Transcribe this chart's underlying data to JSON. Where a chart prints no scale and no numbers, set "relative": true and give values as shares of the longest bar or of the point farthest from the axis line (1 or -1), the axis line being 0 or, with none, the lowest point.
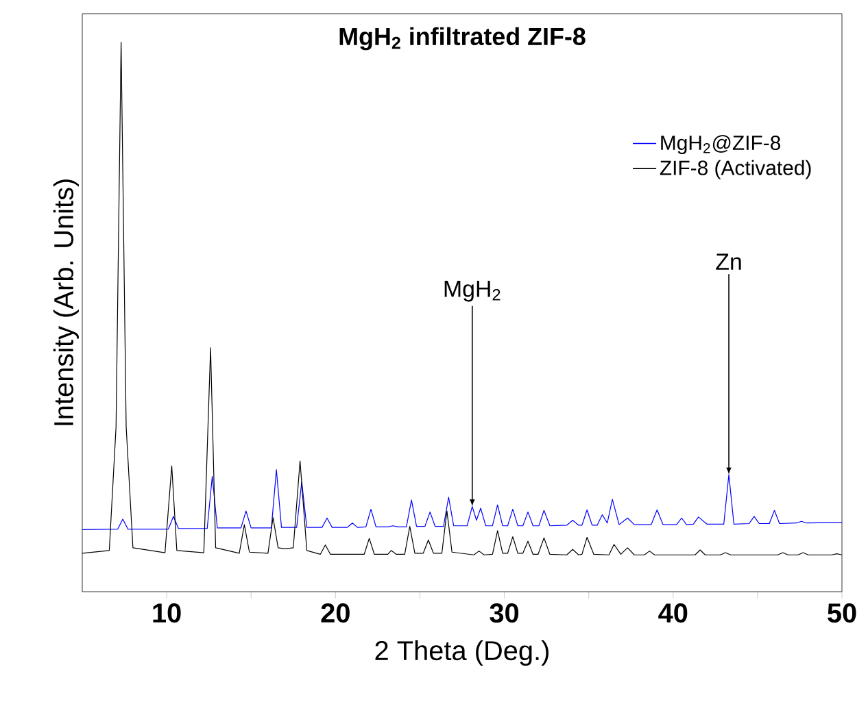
{
  "chart_data": {
    "type": "line",
    "title": "MgH$_{2}$ infiltrated ZIF-8",
    "xlabel": "2 Theta (Deg.)",
    "ylabel": "Intensity (Arb. Units)",
    "relative": true,
    "xlim": [
      5,
      50
    ],
    "xticks": [
      10,
      {
        "value": 15,
        "label": null
      },
      20,
      {
        "value": 25,
        "label": null
      },
      30,
      {
        "value": 35,
        "label": null
      },
      40,
      {
        "value": 45,
        "label": null
      },
      50
    ],
    "legend": "top right",
    "grid": false,
    "marker": "none",
    "line_style": "solid",
    "annotations": [
      {
        "text": "MgH$_{2}$",
        "x": 28.1,
        "y": 0.155
      },
      {
        "text": "Zn",
        "x": 43.3,
        "y": 0.213
      }
    ],
    "series": [
      {
        "name": "MgH$_{2}$@ZIF-8",
        "color": "#0000ff",
        "x": [
          5,
          7.1,
          7.4,
          7.7,
          10.1,
          10.4,
          10.7,
          12.4,
          12.7,
          13.0,
          14.4,
          14.7,
          15.0,
          16.2,
          16.5,
          16.8,
          17.7,
          18.0,
          18.3,
          19.2,
          19.5,
          19.8,
          20.7,
          21.0,
          21.3,
          21.8,
          22.1,
          22.4,
          23.1,
          23.4,
          23.7,
          24.2,
          24.5,
          24.8,
          25.3,
          25.6,
          25.9,
          26.4,
          26.7,
          27.0,
          27.8,
          28.1,
          28.35,
          28.6,
          28.9,
          29.3,
          29.6,
          29.9,
          30.2,
          30.5,
          30.8,
          31.1,
          31.4,
          31.7,
          32.05,
          32.35,
          32.7,
          33.7,
          34.05,
          34.4,
          34.6,
          34.9,
          35.2,
          35.5,
          35.8,
          36.1,
          36.4,
          36.8,
          37.3,
          37.7,
          38.7,
          39.05,
          39.4,
          40.2,
          40.5,
          40.8,
          41.2,
          41.5,
          42.0,
          43.0,
          43.3,
          43.6,
          44.5,
          44.8,
          45.1,
          45.7,
          46.0,
          46.3,
          47.3,
          47.6,
          47.9,
          50
        ],
        "values": [
          0.113,
          0.114,
          0.132,
          0.114,
          0.114,
          0.137,
          0.115,
          0.115,
          0.21,
          0.116,
          0.116,
          0.147,
          0.116,
          0.116,
          0.222,
          0.117,
          0.117,
          0.2,
          0.117,
          0.117,
          0.134,
          0.117,
          0.117,
          0.125,
          0.117,
          0.118,
          0.15,
          0.118,
          0.118,
          0.12,
          0.118,
          0.118,
          0.167,
          0.119,
          0.119,
          0.145,
          0.119,
          0.119,
          0.172,
          0.12,
          0.12,
          0.155,
          0.13,
          0.152,
          0.12,
          0.12,
          0.158,
          0.12,
          0.12,
          0.15,
          0.12,
          0.12,
          0.145,
          0.12,
          0.12,
          0.148,
          0.12,
          0.121,
          0.13,
          0.121,
          0.121,
          0.149,
          0.121,
          0.121,
          0.14,
          0.125,
          0.168,
          0.122,
          0.134,
          0.122,
          0.122,
          0.149,
          0.122,
          0.122,
          0.134,
          0.122,
          0.123,
          0.136,
          0.123,
          0.123,
          0.213,
          0.123,
          0.124,
          0.137,
          0.124,
          0.124,
          0.148,
          0.124,
          0.125,
          0.128,
          0.125,
          0.126
        ]
      },
      {
        "name": "ZIF-8 (Activated)",
        "color": "#000000",
        "x": [
          5,
          6.6,
          7.0,
          7.3,
          7.6,
          8.0,
          9.9,
          10.3,
          10.6,
          12.2,
          12.6,
          12.9,
          14.3,
          14.6,
          14.9,
          16.0,
          16.3,
          16.6,
          17.0,
          17.5,
          17.9,
          18.3,
          19.1,
          19.4,
          19.7,
          21.7,
          22.0,
          22.3,
          23.1,
          23.3,
          23.6,
          24.1,
          24.4,
          24.7,
          25.2,
          25.5,
          25.8,
          26.3,
          26.6,
          26.9,
          28.2,
          28.5,
          28.8,
          29.3,
          29.6,
          29.9,
          30.2,
          30.5,
          30.8,
          31.1,
          31.4,
          31.7,
          32.0,
          32.35,
          32.7,
          33.7,
          34.05,
          34.4,
          34.6,
          34.9,
          35.3,
          36.2,
          36.5,
          36.9,
          37.3,
          37.7,
          38.3,
          38.6,
          38.9,
          41.3,
          41.6,
          41.9,
          42.8,
          43.1,
          43.4,
          46.2,
          46.5,
          46.8,
          47.4,
          47.7,
          48.0,
          49.4,
          49.7,
          50
        ],
        "values": [
          0.07,
          0.075,
          0.3,
          1.0,
          0.3,
          0.08,
          0.071,
          0.229,
          0.075,
          0.071,
          0.444,
          0.08,
          0.07,
          0.122,
          0.072,
          0.07,
          0.135,
          0.08,
          0.078,
          0.08,
          0.238,
          0.075,
          0.068,
          0.085,
          0.068,
          0.068,
          0.097,
          0.068,
          0.068,
          0.075,
          0.068,
          0.068,
          0.119,
          0.07,
          0.07,
          0.094,
          0.07,
          0.07,
          0.147,
          0.072,
          0.067,
          0.074,
          0.067,
          0.068,
          0.111,
          0.07,
          0.07,
          0.1,
          0.07,
          0.07,
          0.092,
          0.068,
          0.068,
          0.098,
          0.068,
          0.067,
          0.077,
          0.067,
          0.068,
          0.099,
          0.068,
          0.067,
          0.086,
          0.068,
          0.08,
          0.067,
          0.067,
          0.074,
          0.067,
          0.067,
          0.076,
          0.067,
          0.067,
          0.071,
          0.067,
          0.067,
          0.071,
          0.067,
          0.067,
          0.071,
          0.067,
          0.067,
          0.069,
          0.067
        ]
      }
    ]
  }
}
